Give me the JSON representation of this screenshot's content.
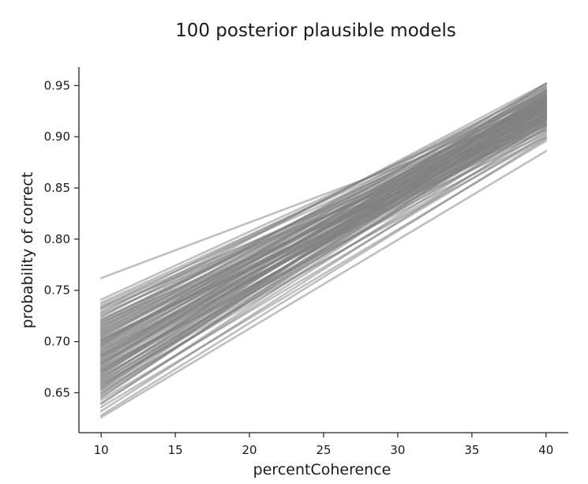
{
  "chart_data": {
    "type": "line",
    "title": "100 posterior plausible models",
    "xlabel": "percentCoherence",
    "ylabel": "probability of correct",
    "xlim": [
      8.5,
      41.5
    ],
    "ylim": [
      0.611,
      0.968
    ],
    "xticks": [
      10,
      15,
      20,
      25,
      30,
      35,
      40
    ],
    "yticks": [
      0.65,
      0.7,
      0.75,
      0.8,
      0.85,
      0.9,
      0.95
    ],
    "xtick_labels": [
      "10",
      "15",
      "20",
      "25",
      "30",
      "35",
      "40"
    ],
    "ytick_labels": [
      "0.65",
      "0.70",
      "0.75",
      "0.80",
      "0.85",
      "0.90",
      "0.95"
    ],
    "x": [
      10,
      40
    ],
    "n_lines": 100,
    "line_color": "#808080",
    "line_opacity": 0.5,
    "grid": false,
    "series": [
      {
        "values": [
          0.762,
          0.925
        ]
      },
      {
        "values": [
          0.741,
          0.94
        ]
      },
      {
        "values": [
          0.738,
          0.936
        ]
      },
      {
        "values": [
          0.736,
          0.932
        ]
      },
      {
        "values": [
          0.733,
          0.944
        ]
      },
      {
        "values": [
          0.73,
          0.928
        ]
      },
      {
        "values": [
          0.728,
          0.948
        ]
      },
      {
        "values": [
          0.725,
          0.934
        ]
      },
      {
        "values": [
          0.722,
          0.921
        ]
      },
      {
        "values": [
          0.72,
          0.942
        ]
      },
      {
        "values": [
          0.718,
          0.938
        ]
      },
      {
        "values": [
          0.716,
          0.926
        ]
      },
      {
        "values": [
          0.714,
          0.95
        ]
      },
      {
        "values": [
          0.712,
          0.93
        ]
      },
      {
        "values": [
          0.71,
          0.918
        ]
      },
      {
        "values": [
          0.709,
          0.946
        ]
      },
      {
        "values": [
          0.707,
          0.935
        ]
      },
      {
        "values": [
          0.705,
          0.924
        ]
      },
      {
        "values": [
          0.704,
          0.94
        ]
      },
      {
        "values": [
          0.702,
          0.916
        ]
      },
      {
        "values": [
          0.701,
          0.929
        ]
      },
      {
        "values": [
          0.699,
          0.943
        ]
      },
      {
        "values": [
          0.698,
          0.933
        ]
      },
      {
        "values": [
          0.696,
          0.922
        ]
      },
      {
        "values": [
          0.695,
          0.939
        ]
      },
      {
        "values": [
          0.693,
          0.927
        ]
      },
      {
        "values": [
          0.692,
          0.913
        ]
      },
      {
        "values": [
          0.69,
          0.945
        ]
      },
      {
        "values": [
          0.689,
          0.931
        ]
      },
      {
        "values": [
          0.688,
          0.92
        ]
      },
      {
        "values": [
          0.686,
          0.937
        ]
      },
      {
        "values": [
          0.685,
          0.925
        ]
      },
      {
        "values": [
          0.684,
          0.91
        ]
      },
      {
        "values": [
          0.682,
          0.941
        ]
      },
      {
        "values": [
          0.681,
          0.929
        ]
      },
      {
        "values": [
          0.68,
          0.918
        ]
      },
      {
        "values": [
          0.678,
          0.936
        ]
      },
      {
        "values": [
          0.677,
          0.923
        ]
      },
      {
        "values": [
          0.676,
          0.947
        ]
      },
      {
        "values": [
          0.674,
          0.932
        ]
      },
      {
        "values": [
          0.673,
          0.915
        ]
      },
      {
        "values": [
          0.672,
          0.927
        ]
      },
      {
        "values": [
          0.67,
          0.939
        ]
      },
      {
        "values": [
          0.669,
          0.921
        ]
      },
      {
        "values": [
          0.668,
          0.934
        ]
      },
      {
        "values": [
          0.666,
          0.908
        ]
      },
      {
        "values": [
          0.665,
          0.926
        ]
      },
      {
        "values": [
          0.663,
          0.943
        ]
      },
      {
        "values": [
          0.662,
          0.919
        ]
      },
      {
        "values": [
          0.66,
          0.931
        ]
      },
      {
        "values": [
          0.658,
          0.912
        ]
      },
      {
        "values": [
          0.656,
          0.924
        ]
      },
      {
        "values": [
          0.654,
          0.937
        ]
      },
      {
        "values": [
          0.652,
          0.905
        ]
      },
      {
        "values": [
          0.65,
          0.918
        ]
      },
      {
        "values": [
          0.646,
          0.929
        ]
      },
      {
        "values": [
          0.643,
          0.902
        ]
      },
      {
        "values": [
          0.64,
          0.914
        ]
      },
      {
        "values": [
          0.636,
          0.896
        ]
      },
      {
        "values": [
          0.632,
          0.909
        ]
      },
      {
        "values": [
          0.628,
          0.898
        ]
      },
      {
        "values": [
          0.626,
          0.886
        ]
      },
      {
        "values": [
          0.727,
          0.917
        ]
      },
      {
        "values": [
          0.715,
          0.911
        ]
      },
      {
        "values": [
          0.703,
          0.906
        ]
      },
      {
        "values": [
          0.697,
          0.952
        ]
      },
      {
        "values": [
          0.691,
          0.903
        ]
      },
      {
        "values": [
          0.683,
          0.949
        ]
      },
      {
        "values": [
          0.675,
          0.9
        ]
      },
      {
        "values": [
          0.667,
          0.952
        ]
      },
      {
        "values": [
          0.659,
          0.899
        ]
      },
      {
        "values": [
          0.649,
          0.945
        ]
      },
      {
        "values": [
          0.732,
          0.913
        ]
      },
      {
        "values": [
          0.724,
          0.952
        ]
      },
      {
        "values": [
          0.719,
          0.907
        ]
      },
      {
        "values": [
          0.711,
          0.922
        ]
      },
      {
        "values": [
          0.706,
          0.933
        ]
      },
      {
        "values": [
          0.7,
          0.919
        ]
      },
      {
        "values": [
          0.694,
          0.926
        ]
      },
      {
        "values": [
          0.687,
          0.934
        ]
      },
      {
        "values": [
          0.679,
          0.922
        ]
      },
      {
        "values": [
          0.671,
          0.917
        ]
      },
      {
        "values": [
          0.664,
          0.928
        ]
      },
      {
        "values": [
          0.657,
          0.937
        ]
      },
      {
        "values": [
          0.653,
          0.931
        ]
      },
      {
        "values": [
          0.648,
          0.921
        ]
      },
      {
        "values": [
          0.645,
          0.935
        ]
      },
      {
        "values": [
          0.639,
          0.924
        ]
      },
      {
        "values": [
          0.734,
          0.92
        ]
      },
      {
        "values": [
          0.721,
          0.93
        ]
      },
      {
        "values": [
          0.713,
          0.936
        ]
      },
      {
        "values": [
          0.708,
          0.915
        ]
      },
      {
        "values": [
          0.697,
          0.938
        ]
      },
      {
        "values": [
          0.686,
          0.912
        ]
      },
      {
        "values": [
          0.679,
          0.94
        ]
      },
      {
        "values": [
          0.671,
          0.933
        ]
      },
      {
        "values": [
          0.661,
          0.916
        ]
      },
      {
        "values": [
          0.655,
          0.941
        ]
      },
      {
        "values": [
          0.717,
          0.944
        ]
      },
      {
        "values": [
          0.701,
          0.911
        ]
      }
    ]
  }
}
